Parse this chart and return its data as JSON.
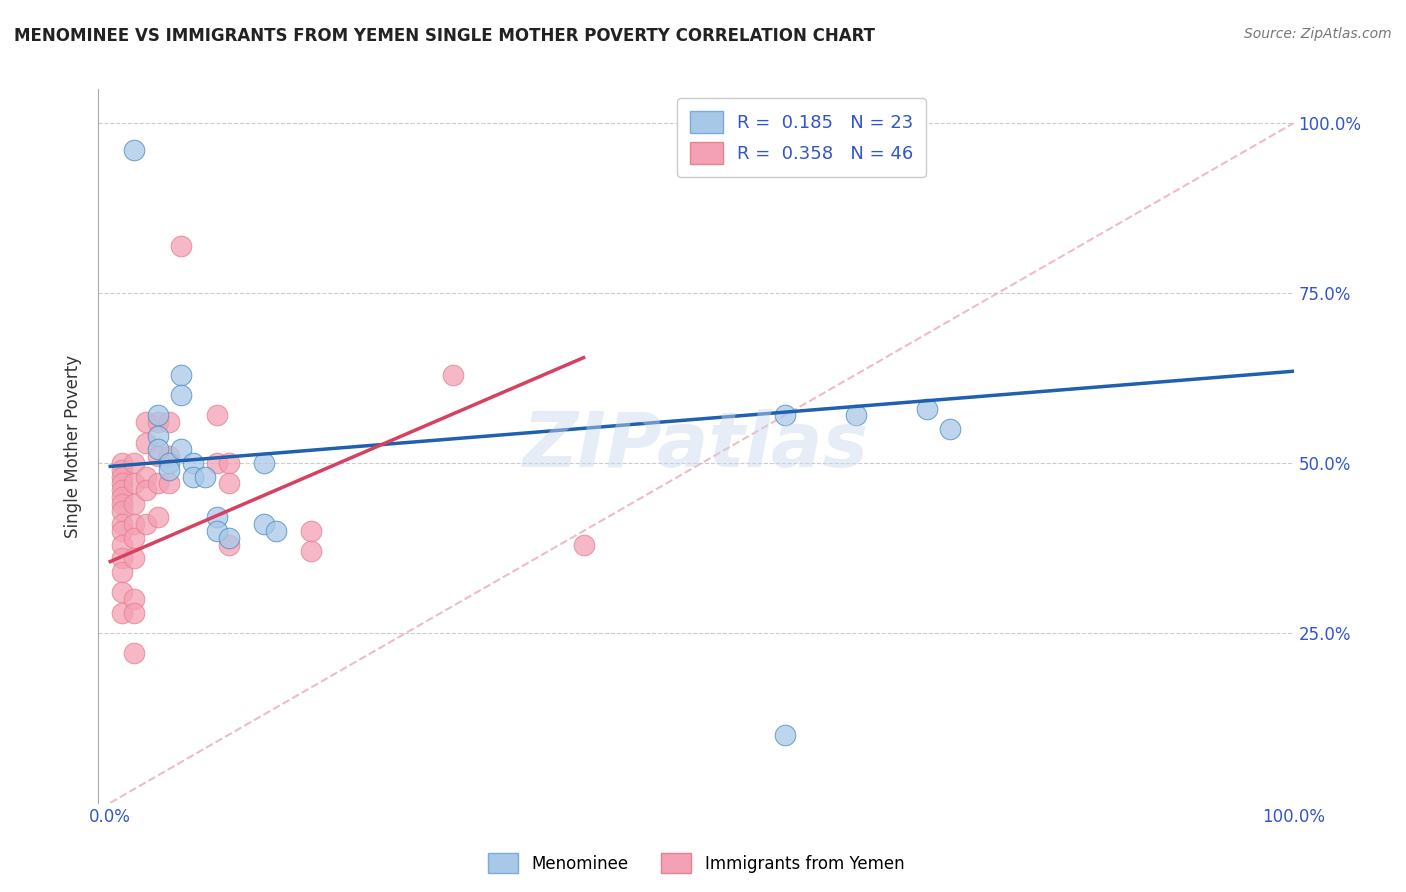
{
  "title": "MENOMINEE VS IMMIGRANTS FROM YEMEN SINGLE MOTHER POVERTY CORRELATION CHART",
  "source": "Source: ZipAtlas.com",
  "ylabel": "Single Mother Poverty",
  "legend_label1": "Menominee",
  "legend_label2": "Immigrants from Yemen",
  "color_blue": "#a8c8e8",
  "color_pink": "#f4a0b5",
  "line_color_blue": "#2060b0",
  "line_color_pink": "#d84060",
  "line_color_diag": "#e8a0b0",
  "menominee_points": [
    [
      0.02,
      0.96
    ],
    [
      0.06,
      0.63
    ],
    [
      0.06,
      0.6
    ],
    [
      0.04,
      0.57
    ],
    [
      0.04,
      0.54
    ],
    [
      0.04,
      0.52
    ],
    [
      0.05,
      0.5
    ],
    [
      0.05,
      0.49
    ],
    [
      0.06,
      0.52
    ],
    [
      0.07,
      0.5
    ],
    [
      0.07,
      0.48
    ],
    [
      0.08,
      0.48
    ],
    [
      0.09,
      0.42
    ],
    [
      0.09,
      0.4
    ],
    [
      0.1,
      0.39
    ],
    [
      0.13,
      0.5
    ],
    [
      0.13,
      0.41
    ],
    [
      0.14,
      0.4
    ],
    [
      0.57,
      0.57
    ],
    [
      0.63,
      0.57
    ],
    [
      0.69,
      0.58
    ],
    [
      0.71,
      0.55
    ],
    [
      0.57,
      0.1
    ]
  ],
  "yemen_points": [
    [
      0.01,
      0.5
    ],
    [
      0.01,
      0.49
    ],
    [
      0.01,
      0.48
    ],
    [
      0.01,
      0.47
    ],
    [
      0.01,
      0.46
    ],
    [
      0.01,
      0.45
    ],
    [
      0.01,
      0.44
    ],
    [
      0.01,
      0.43
    ],
    [
      0.01,
      0.41
    ],
    [
      0.01,
      0.4
    ],
    [
      0.01,
      0.38
    ],
    [
      0.01,
      0.36
    ],
    [
      0.01,
      0.34
    ],
    [
      0.01,
      0.31
    ],
    [
      0.01,
      0.28
    ],
    [
      0.02,
      0.5
    ],
    [
      0.02,
      0.47
    ],
    [
      0.02,
      0.44
    ],
    [
      0.02,
      0.41
    ],
    [
      0.02,
      0.39
    ],
    [
      0.02,
      0.36
    ],
    [
      0.02,
      0.3
    ],
    [
      0.02,
      0.28
    ],
    [
      0.02,
      0.22
    ],
    [
      0.03,
      0.56
    ],
    [
      0.03,
      0.53
    ],
    [
      0.03,
      0.48
    ],
    [
      0.03,
      0.46
    ],
    [
      0.03,
      0.41
    ],
    [
      0.04,
      0.56
    ],
    [
      0.04,
      0.51
    ],
    [
      0.04,
      0.47
    ],
    [
      0.04,
      0.42
    ],
    [
      0.05,
      0.56
    ],
    [
      0.05,
      0.51
    ],
    [
      0.05,
      0.47
    ],
    [
      0.06,
      0.82
    ],
    [
      0.09,
      0.57
    ],
    [
      0.09,
      0.5
    ],
    [
      0.1,
      0.5
    ],
    [
      0.1,
      0.47
    ],
    [
      0.1,
      0.38
    ],
    [
      0.17,
      0.4
    ],
    [
      0.17,
      0.37
    ],
    [
      0.29,
      0.63
    ],
    [
      0.4,
      0.38
    ]
  ],
  "xlim": [
    -0.01,
    1.0
  ],
  "ylim": [
    0.0,
    1.05
  ],
  "menominee_R": 0.185,
  "menominee_N": 23,
  "yemen_R": 0.358,
  "yemen_N": 46,
  "blue_line_x": [
    0.0,
    1.0
  ],
  "blue_line_y": [
    0.495,
    0.635
  ],
  "pink_line_x": [
    0.0,
    0.4
  ],
  "pink_line_y": [
    0.355,
    0.655
  ]
}
